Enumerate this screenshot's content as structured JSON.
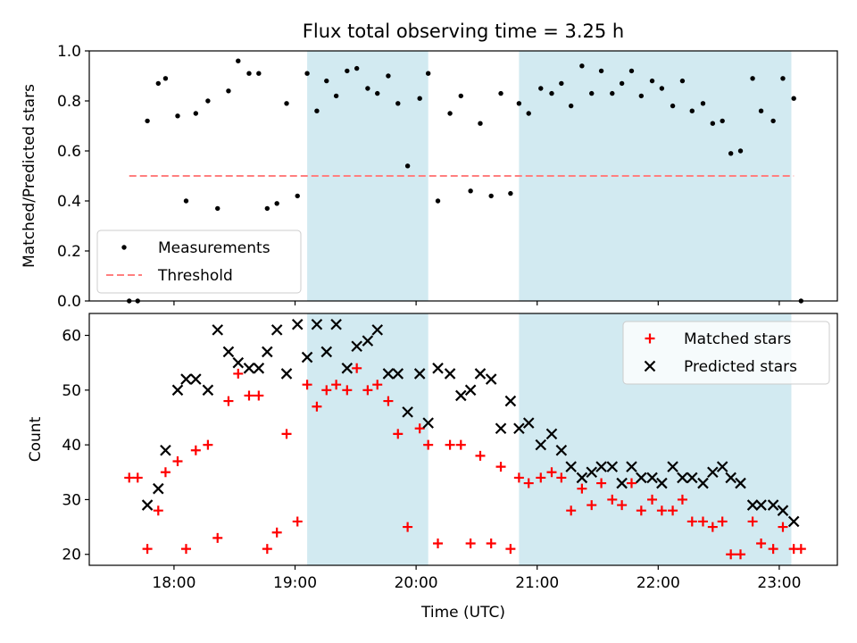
{
  "chart_data": {
    "title": "Flux total observing time = 3.25 h",
    "xlabel": "Time (UTC)",
    "x_unit": "hours UTC",
    "xlim": [
      17.3,
      23.48
    ],
    "xticks": [
      "18:00",
      "19:00",
      "20:00",
      "21:00",
      "22:00",
      "23:00"
    ],
    "xtick_values": [
      18,
      19,
      20,
      21,
      22,
      23
    ],
    "shaded_intervals": [
      [
        19.1,
        20.1
      ],
      [
        20.85,
        23.1
      ]
    ],
    "shade_color": "#add8e6",
    "panels": [
      {
        "type": "scatter",
        "ylabel": "Matched/Predicted stars",
        "ylim": [
          0,
          1.0
        ],
        "yticks": [
          "0.0",
          "0.2",
          "0.4",
          "0.6",
          "0.8",
          "1.0"
        ],
        "ytick_values": [
          0,
          0.2,
          0.4,
          0.6,
          0.8,
          1.0
        ],
        "legend": {
          "position": "lower-left",
          "items": [
            "Measurements",
            "Threshold"
          ]
        },
        "series": [
          {
            "name": "Measurements",
            "marker": "dot",
            "color": "#000000",
            "x": [
              17.63,
              17.7,
              17.78,
              17.87,
              17.93,
              18.03,
              18.1,
              18.18,
              18.28,
              18.36,
              18.45,
              18.53,
              18.62,
              18.7,
              18.77,
              18.85,
              18.93,
              19.02,
              19.1,
              19.18,
              19.26,
              19.34,
              19.43,
              19.51,
              19.6,
              19.68,
              19.77,
              19.85,
              19.93,
              20.03,
              20.1,
              20.18,
              20.28,
              20.37,
              20.45,
              20.53,
              20.62,
              20.7,
              20.78,
              20.85,
              20.93,
              21.03,
              21.12,
              21.2,
              21.28,
              21.37,
              21.45,
              21.53,
              21.62,
              21.7,
              21.78,
              21.86,
              21.95,
              22.03,
              22.12,
              22.2,
              22.28,
              22.37,
              22.45,
              22.53,
              22.6,
              22.68,
              22.78,
              22.85,
              22.95,
              23.03,
              23.12,
              23.18
            ],
            "y": [
              0.0,
              0.0,
              0.72,
              0.87,
              0.89,
              0.74,
              0.4,
              0.75,
              0.8,
              0.37,
              0.84,
              0.96,
              0.91,
              0.91,
              0.37,
              0.39,
              0.79,
              0.42,
              0.91,
              0.76,
              0.88,
              0.82,
              0.92,
              0.93,
              0.85,
              0.83,
              0.9,
              0.79,
              0.54,
              0.81,
              0.91,
              0.4,
              0.75,
              0.82,
              0.44,
              0.71,
              0.42,
              0.83,
              0.43,
              0.79,
              0.75,
              0.85,
              0.83,
              0.87,
              0.78,
              0.94,
              0.83,
              0.92,
              0.83,
              0.87,
              0.92,
              0.82,
              0.88,
              0.85,
              0.78,
              0.88,
              0.76,
              0.79,
              0.71,
              0.72,
              0.59,
              0.6,
              0.89,
              0.76,
              0.72,
              0.89,
              0.81,
              0.0
            ]
          },
          {
            "name": "Threshold",
            "type": "line",
            "style": "dashed",
            "color": "#ff7f7f",
            "x": [
              17.63,
              23.12
            ],
            "y": [
              0.5,
              0.5
            ]
          }
        ]
      },
      {
        "type": "scatter",
        "ylabel": "Count",
        "ylim": [
          18,
          64
        ],
        "yticks": [
          "20",
          "30",
          "40",
          "50",
          "60"
        ],
        "ytick_values": [
          20,
          30,
          40,
          50,
          60
        ],
        "legend": {
          "position": "upper-right",
          "items": [
            "Matched stars",
            "Predicted stars"
          ]
        },
        "series": [
          {
            "name": "Matched stars",
            "marker": "plus",
            "color": "#ff0000",
            "x": [
              17.63,
              17.7,
              17.78,
              17.87,
              17.93,
              18.03,
              18.1,
              18.18,
              18.28,
              18.36,
              18.45,
              18.53,
              18.62,
              18.7,
              18.77,
              18.85,
              18.93,
              19.02,
              19.1,
              19.18,
              19.26,
              19.34,
              19.43,
              19.51,
              19.6,
              19.68,
              19.77,
              19.85,
              19.93,
              20.03,
              20.1,
              20.18,
              20.28,
              20.37,
              20.45,
              20.53,
              20.62,
              20.7,
              20.78,
              20.85,
              20.93,
              21.03,
              21.12,
              21.2,
              21.28,
              21.37,
              21.45,
              21.53,
              21.62,
              21.7,
              21.78,
              21.86,
              21.95,
              22.03,
              22.12,
              22.2,
              22.28,
              22.37,
              22.45,
              22.53,
              22.6,
              22.68,
              22.78,
              22.85,
              22.95,
              23.03,
              23.12,
              23.18
            ],
            "y": [
              34,
              34,
              21,
              28,
              35,
              37,
              21,
              39,
              40,
              23,
              48,
              53,
              49,
              49,
              21,
              24,
              42,
              26,
              51,
              47,
              50,
              51,
              50,
              54,
              50,
              51,
              48,
              42,
              25,
              43,
              40,
              22,
              40,
              40,
              22,
              38,
              22,
              36,
              21,
              34,
              33,
              34,
              35,
              34,
              28,
              32,
              29,
              33,
              30,
              29,
              33,
              28,
              30,
              28,
              28,
              30,
              26,
              26,
              25,
              26,
              20,
              20,
              26,
              22,
              21,
              25,
              21,
              21
            ]
          },
          {
            "name": "Predicted stars",
            "marker": "x",
            "color": "#000000",
            "x": [
              17.78,
              17.87,
              17.93,
              18.03,
              18.1,
              18.18,
              18.28,
              18.36,
              18.45,
              18.53,
              18.62,
              18.7,
              18.77,
              18.85,
              18.93,
              19.02,
              19.1,
              19.18,
              19.26,
              19.34,
              19.43,
              19.51,
              19.6,
              19.68,
              19.77,
              19.85,
              19.93,
              20.03,
              20.1,
              20.18,
              20.28,
              20.37,
              20.45,
              20.53,
              20.62,
              20.7,
              20.78,
              20.85,
              20.93,
              21.03,
              21.12,
              21.2,
              21.28,
              21.37,
              21.45,
              21.53,
              21.62,
              21.7,
              21.78,
              21.86,
              21.95,
              22.03,
              22.12,
              22.2,
              22.28,
              22.37,
              22.45,
              22.53,
              22.6,
              22.68,
              22.78,
              22.85,
              22.95,
              23.03,
              23.12
            ],
            "y": [
              29,
              32,
              39,
              50,
              52,
              52,
              50,
              61,
              57,
              55,
              54,
              54,
              57,
              61,
              53,
              62,
              56,
              62,
              57,
              62,
              54,
              58,
              59,
              61,
              53,
              53,
              46,
              53,
              44,
              54,
              53,
              49,
              50,
              53,
              52,
              43,
              48,
              43,
              44,
              40,
              42,
              39,
              36,
              34,
              35,
              36,
              36,
              33,
              36,
              34,
              34,
              33,
              36,
              34,
              34,
              33,
              35,
              36,
              34,
              33,
              29,
              29,
              29,
              28,
              26
            ]
          }
        ]
      }
    ]
  }
}
